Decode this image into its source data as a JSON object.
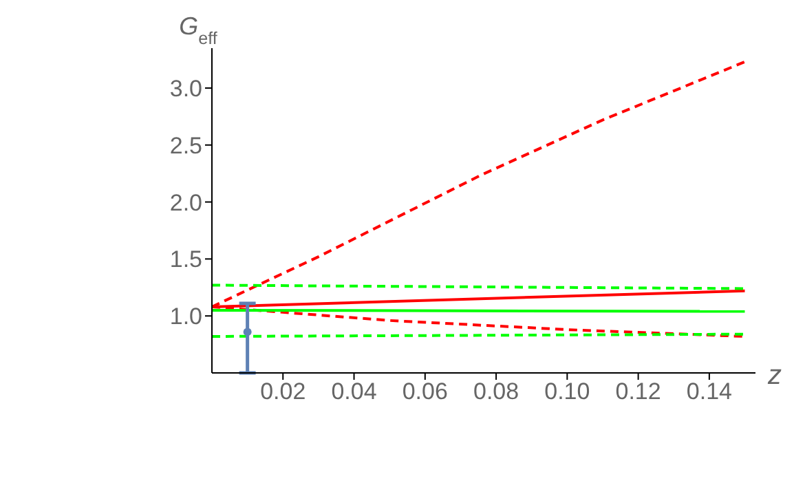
{
  "chart_data": {
    "type": "line",
    "xlabel": "z",
    "ylabel": "G$_{eff}$",
    "xlim": [
      0,
      0.153
    ],
    "ylim": [
      0.5,
      3.35
    ],
    "xticks": [
      0.02,
      0.04,
      0.06,
      0.08,
      {
        "value": 0.1,
        "label": "0.10"
      },
      0.12,
      0.14
    ],
    "yticks": [
      {
        "value": 1,
        "label": "1.0"
      },
      1.5,
      {
        "value": 2,
        "label": "2.0"
      },
      2.5,
      {
        "value": 3,
        "label": "3.0"
      }
    ],
    "grid": false,
    "legend": false,
    "marker": "none",
    "series": [
      {
        "color": "#ff0000",
        "line_style": "dashed",
        "x": [
          0,
          0.03,
          0.076,
          0.11,
          0.15
        ],
        "values": [
          1.08,
          1.52,
          2.24,
          2.72,
          3.23
        ]
      },
      {
        "color": "#ff0000",
        "line_style": "solid",
        "x": [
          0,
          0.15
        ],
        "values": [
          1.08,
          1.22
        ]
      },
      {
        "color": "#ff0000",
        "line_style": "dashed",
        "x": [
          0,
          0.05,
          0.1,
          0.15
        ],
        "values": [
          1.08,
          0.96,
          0.88,
          0.82
        ]
      },
      {
        "color": "#00ff00",
        "line_style": "solid",
        "x": [
          0,
          0.15
        ],
        "values": [
          1.05,
          1.04
        ]
      },
      {
        "color": "#00ff00",
        "line_style": "dashed",
        "x": [
          0,
          0.15
        ],
        "values": [
          1.27,
          1.24
        ]
      },
      {
        "color": "#00ff00",
        "line_style": "dashed",
        "x": [
          0,
          0.15
        ],
        "values": [
          0.82,
          0.84
        ]
      },
      {
        "type": "scatter",
        "color": "#5e81b5",
        "marker": "circle",
        "x": [
          0.01
        ],
        "values": [
          0.86
        ],
        "errors": [
          [
            0.5,
            1.11
          ]
        ]
      }
    ]
  }
}
